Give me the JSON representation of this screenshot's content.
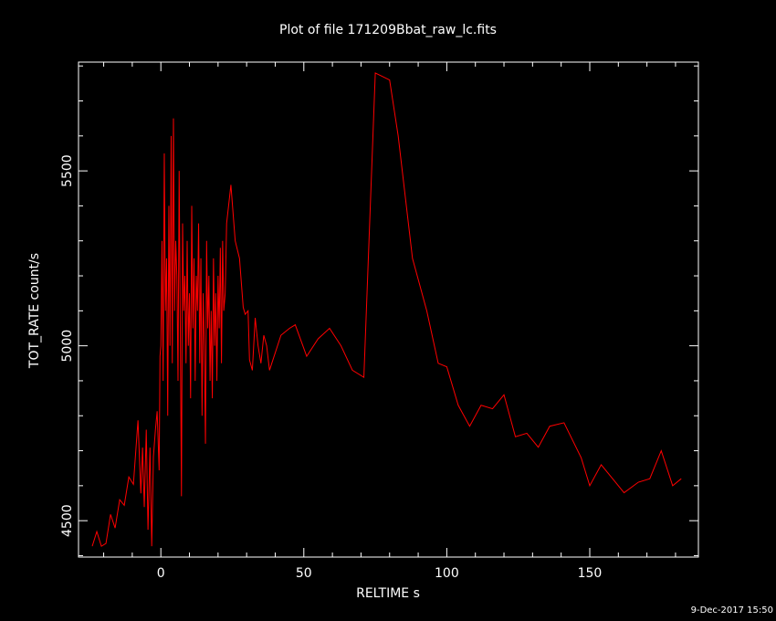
{
  "chart_data": {
    "type": "line",
    "title": "Plot of file 171209Bbat_raw_lc.fits",
    "xlabel": "RELTIME  s",
    "ylabel": "TOT_RATE  count/s",
    "footer": "9-Dec-2017 15:50",
    "color": "#ff0000",
    "xlim": [
      -28.8,
      188
    ],
    "ylim": [
      4396,
      5811
    ],
    "xticks": [
      0,
      50,
      100,
      150
    ],
    "yticks": [
      4500,
      5000,
      5500
    ],
    "xminorticks": [
      -20,
      -10,
      10,
      20,
      30,
      40,
      60,
      70,
      80,
      90,
      110,
      120,
      130,
      140,
      160,
      170,
      180
    ],
    "yminorticks": [
      4400,
      4600,
      4700,
      4800,
      4900,
      5100,
      5200,
      5300,
      5400,
      5600,
      5700,
      5800
    ],
    "x": [
      -24,
      -22.4,
      -20.8,
      -19.2,
      -17.6,
      -16,
      -14.4,
      -12.8,
      -11.2,
      -9.6,
      -8,
      -7,
      -6.4,
      -5.8,
      -5.1,
      -4.5,
      -3.8,
      -3.2,
      -2.6,
      -1.9,
      -1.3,
      -0.6,
      -0.3,
      0,
      0.4,
      0.8,
      1.2,
      1.6,
      2,
      2.4,
      2.8,
      3.2,
      3.6,
      4,
      4.4,
      4.8,
      5.2,
      5.6,
      6,
      6.4,
      6.8,
      7.2,
      7.6,
      8,
      8.4,
      8.8,
      9.2,
      9.6,
      10,
      10.4,
      10.8,
      11.2,
      11.6,
      12,
      12.4,
      12.8,
      13.2,
      13.6,
      14,
      14.4,
      14.8,
      15.2,
      15.6,
      16,
      16.4,
      16.8,
      17.2,
      17.6,
      18,
      18.4,
      18.8,
      19.2,
      19.6,
      20,
      20.4,
      20.8,
      21.2,
      21.6,
      22,
      22.5,
      23,
      24.5,
      26,
      27.5,
      28.8,
      29.5,
      30.5,
      31,
      32,
      33,
      34,
      35,
      36,
      37,
      38,
      40,
      42,
      45,
      47,
      51,
      55,
      59,
      63,
      67,
      71,
      75,
      80,
      83,
      88,
      93,
      97,
      100,
      104,
      108,
      112,
      116,
      120,
      124,
      128,
      132,
      136,
      141,
      147,
      150,
      154,
      158,
      162,
      167,
      171,
      175,
      179,
      182
    ],
    "values": [
      4427,
      4469,
      4427,
      4435,
      4518,
      4479,
      4560,
      4544,
      4625,
      4604,
      4787,
      4578,
      4709,
      4539,
      4760,
      4474,
      4709,
      4427,
      4683,
      4760,
      4813,
      4644,
      4970,
      5000,
      5300,
      4900,
      5550,
      5100,
      5250,
      4800,
      5400,
      5000,
      5600,
      4950,
      5650,
      5100,
      5300,
      5200,
      4900,
      5500,
      5050,
      4570,
      5350,
      5100,
      5200,
      4950,
      5300,
      5000,
      5150,
      4850,
      5400,
      5050,
      5250,
      4900,
      5200,
      5100,
      5350,
      4950,
      5250,
      4800,
      5150,
      5000,
      4720,
      5300,
      5050,
      5200,
      4900,
      5100,
      4850,
      5250,
      5000,
      5150,
      4900,
      5200,
      5050,
      5280,
      4950,
      5300,
      5100,
      5150,
      5350,
      5460,
      5300,
      5250,
      5110,
      5090,
      5100,
      4960,
      4930,
      5080,
      5000,
      4950,
      5030,
      5000,
      4930,
      4980,
      5030,
      5050,
      5060,
      4970,
      5020,
      5050,
      5000,
      4930,
      4910,
      5780,
      5760,
      5600,
      5250,
      5100,
      4950,
      4940,
      4830,
      4770,
      4830,
      4820,
      4860,
      4740,
      4750,
      4710,
      4770,
      4780,
      4680,
      4600,
      4660,
      4620,
      4580,
      4610,
      4620,
      4700,
      4600,
      4620
    ]
  }
}
